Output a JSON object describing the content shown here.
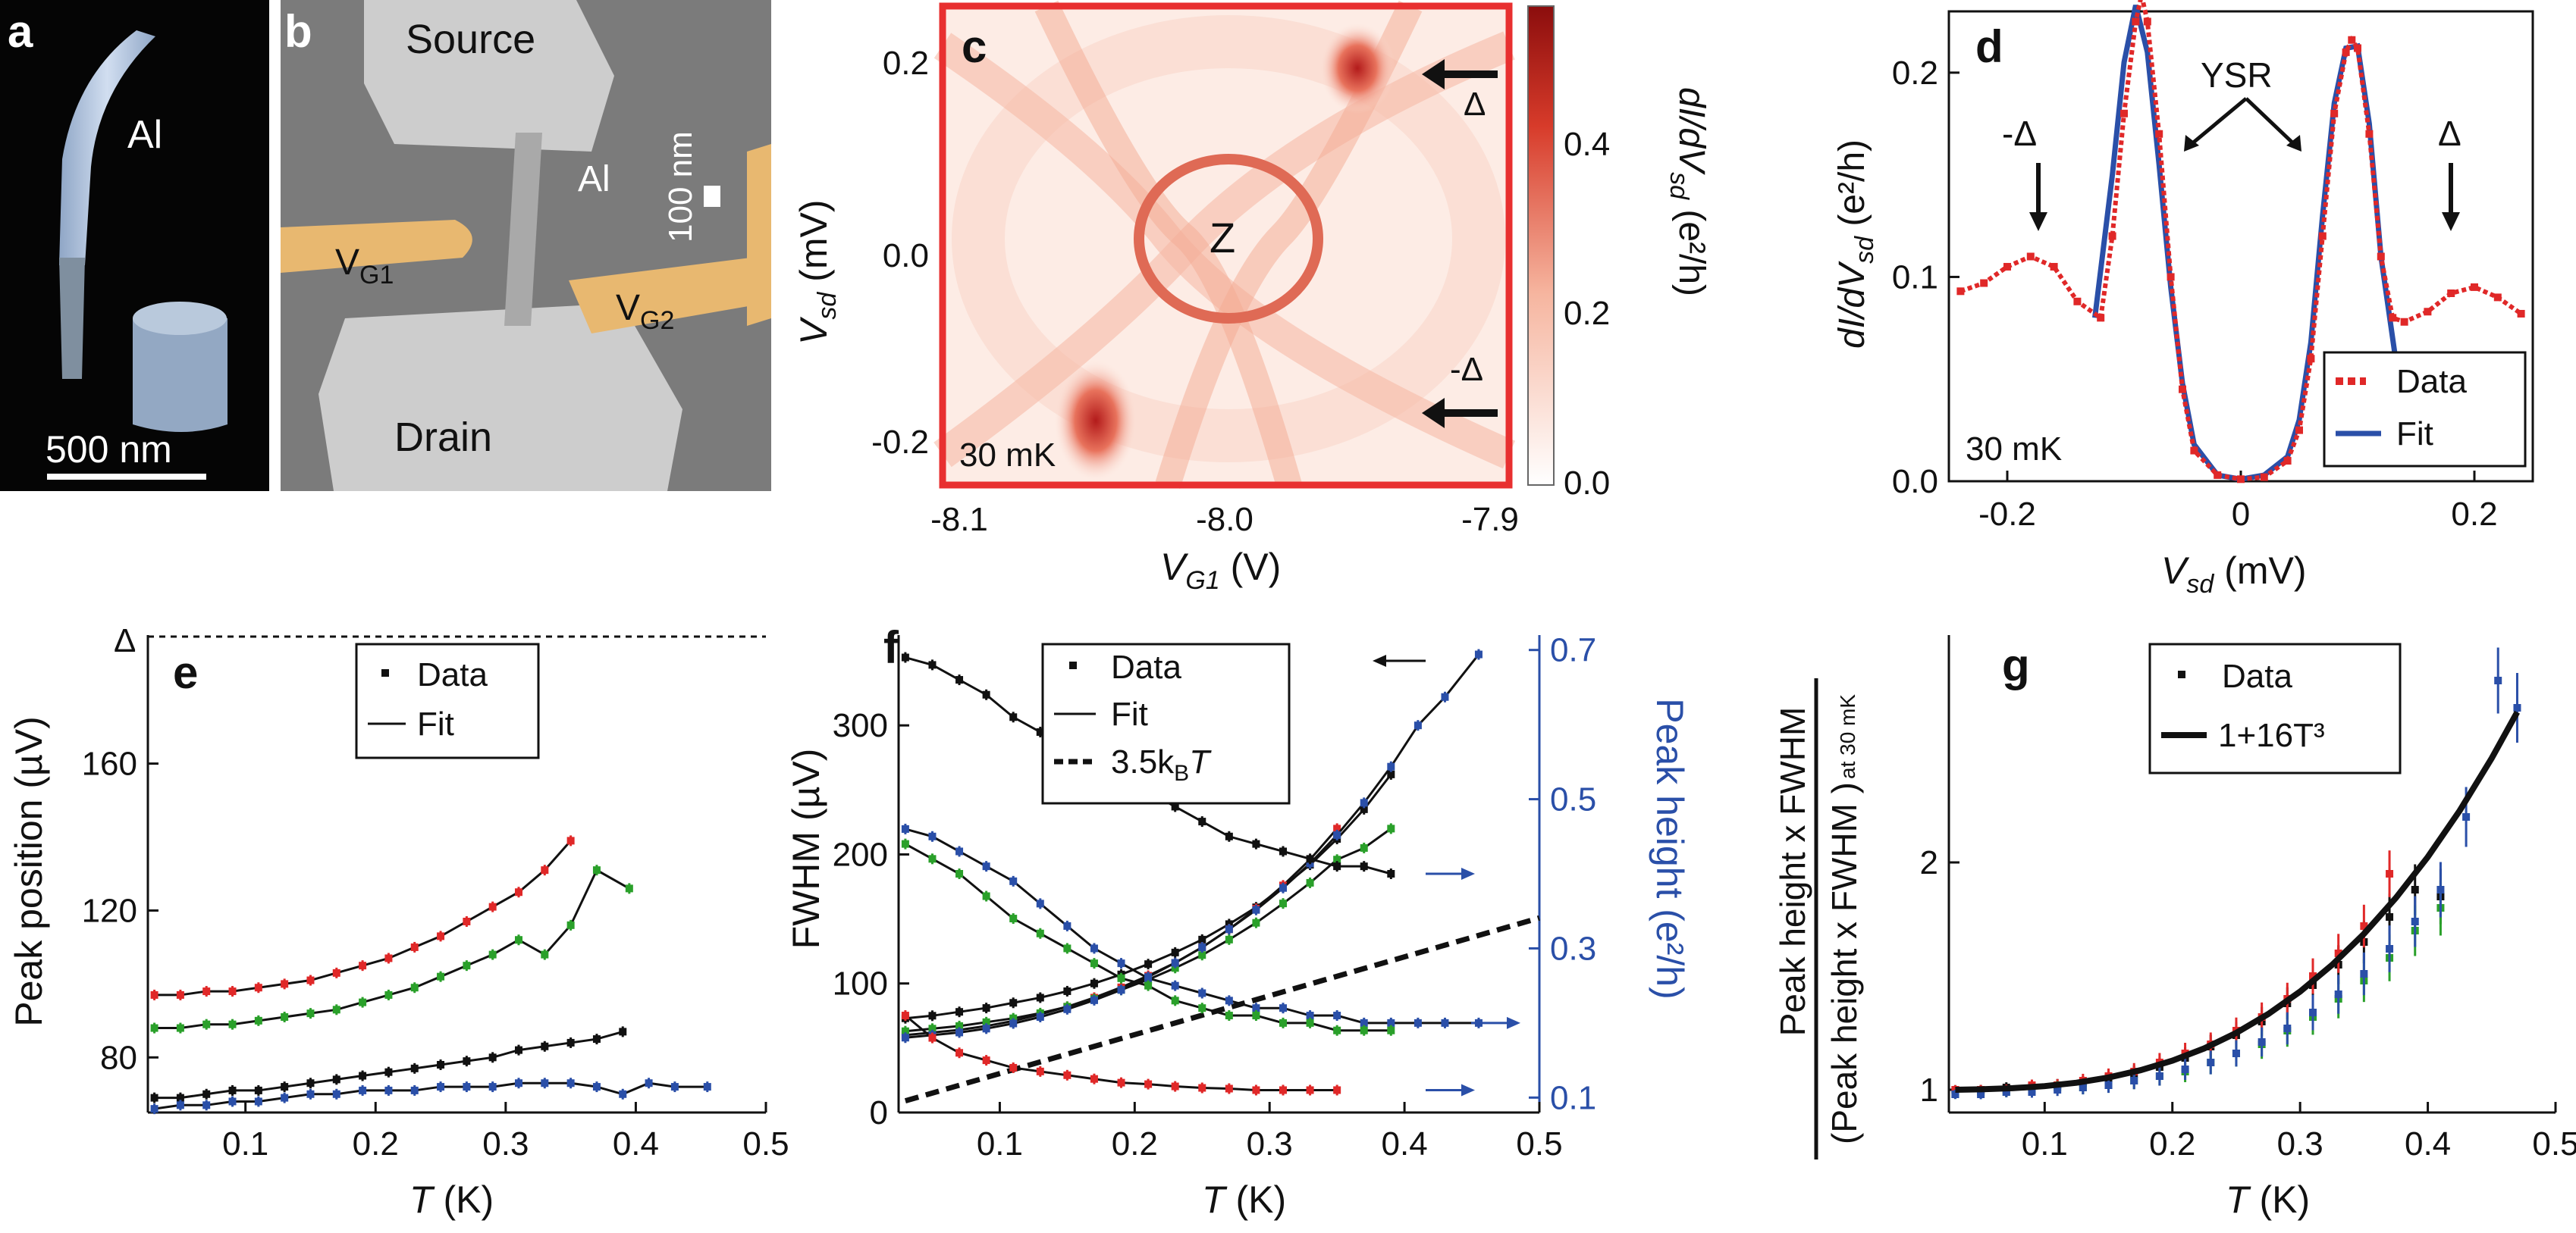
{
  "panels": {
    "a": {
      "letter": "a",
      "label_al": "Al",
      "scale_bar": "500 nm"
    },
    "b": {
      "letter": "b",
      "source": "Source",
      "drain": "Drain",
      "al": "Al",
      "vg1_main": "V",
      "vg1_sub": "G1",
      "vg2_main": "V",
      "vg2_sub": "G2",
      "scale": "100 nm"
    },
    "c": {
      "letter": "c",
      "temp": "30 mK",
      "z_label": "Z",
      "delta_up": "Δ",
      "delta_down": "-Δ",
      "xlabel_main": "V",
      "xlabel_sub": "G1",
      "xlabel_unit": " (V)",
      "ylabel_main": "V",
      "ylabel_sub": "sd",
      "ylabel_unit": " (mV)",
      "cbar_label": "dI/dV",
      "cbar_sub": "sd",
      "cbar_unit": " (e²/h)",
      "xticks": [
        "-8.1",
        "-8.0",
        "-7.9"
      ],
      "yticks": [
        "0.2",
        "0.0",
        "-0.2"
      ],
      "cticks": [
        "0.0",
        "0.2",
        "0.4"
      ]
    },
    "d": {
      "letter": "d",
      "temp": "30 mK",
      "ysr": "YSR",
      "minus_delta": "-Δ",
      "delta": "Δ"
    },
    "e": {
      "letter": "e",
      "delta_label": "Δ"
    },
    "f": {
      "letter": "f",
      "legend3": "3.5k",
      "legend3_sub": "B",
      "legend3_T": "T"
    },
    "g": {
      "letter": "g",
      "legend2": "1+16T³",
      "ylabel_top": "Peak height x FWHM",
      "ylabel_bottom": "(Peak height x FWHM )",
      "ylabel_sub": "at 30 mK"
    }
  },
  "colors": {
    "red": "#e02828",
    "green": "#2aa02a",
    "blue": "#2a4fa8",
    "black": "#111111",
    "gold": "#e8b870",
    "frame_red": "#e83030"
  },
  "chart_data": [
    {
      "id": "d",
      "type": "line",
      "xlabel": "Vsd (mV)",
      "ylabel": "dI/dVsd (e²/h)",
      "xlim": [
        -0.25,
        0.25
      ],
      "ylim": [
        0,
        0.23
      ],
      "xticks": [
        "-0.2",
        "0",
        "0.2"
      ],
      "yticks": [
        "0.0",
        "0.1",
        "0.2"
      ],
      "legend": [
        "Data",
        "Fit"
      ],
      "series": [
        {
          "name": "Data",
          "x": [
            -0.24,
            -0.22,
            -0.2,
            -0.18,
            -0.16,
            -0.14,
            -0.12,
            -0.11,
            -0.1,
            -0.09,
            -0.085,
            -0.08,
            -0.07,
            -0.06,
            -0.05,
            -0.04,
            -0.02,
            0,
            0.02,
            0.04,
            0.05,
            0.06,
            0.07,
            0.08,
            0.09,
            0.095,
            0.1,
            0.11,
            0.12,
            0.13,
            0.14,
            0.16,
            0.18,
            0.2,
            0.22,
            0.24
          ],
          "y": [
            0.093,
            0.097,
            0.105,
            0.11,
            0.105,
            0.088,
            0.08,
            0.12,
            0.18,
            0.225,
            0.238,
            0.225,
            0.17,
            0.1,
            0.045,
            0.015,
            0.003,
            0.001,
            0.002,
            0.01,
            0.025,
            0.06,
            0.12,
            0.18,
            0.21,
            0.216,
            0.212,
            0.17,
            0.11,
            0.08,
            0.078,
            0.083,
            0.092,
            0.095,
            0.09,
            0.082
          ]
        },
        {
          "name": "Fit",
          "x": [
            -0.125,
            -0.11,
            -0.1,
            -0.09,
            -0.08,
            -0.07,
            -0.06,
            -0.05,
            -0.04,
            -0.02,
            0,
            0.02,
            0.04,
            0.05,
            0.06,
            0.07,
            0.08,
            0.09,
            0.1,
            0.11,
            0.12,
            0.135
          ],
          "y": [
            0.08,
            0.15,
            0.205,
            0.233,
            0.21,
            0.155,
            0.095,
            0.048,
            0.018,
            0.003,
            0.001,
            0.003,
            0.012,
            0.03,
            0.068,
            0.13,
            0.185,
            0.212,
            0.213,
            0.175,
            0.11,
            0.05
          ]
        }
      ]
    },
    {
      "id": "e",
      "type": "scatter",
      "xlabel": "T (K)",
      "ylabel": "Peak position (µV)",
      "xlim": [
        0.025,
        0.5
      ],
      "ylim": [
        65,
        195
      ],
      "xticks": [
        "0.1",
        "0.2",
        "0.3",
        "0.4",
        "0.5"
      ],
      "yticks": [
        "80",
        "120",
        "160"
      ],
      "legend": [
        "Data",
        "Fit"
      ],
      "series": [
        {
          "name": "red",
          "x": [
            0.03,
            0.05,
            0.07,
            0.09,
            0.11,
            0.13,
            0.15,
            0.17,
            0.19,
            0.21,
            0.23,
            0.25,
            0.27,
            0.29,
            0.31,
            0.33,
            0.35
          ],
          "y": [
            97,
            97,
            98,
            98,
            99,
            100,
            101,
            103,
            105,
            107,
            110,
            113,
            117,
            121,
            125,
            131,
            139
          ]
        },
        {
          "name": "green",
          "x": [
            0.03,
            0.05,
            0.07,
            0.09,
            0.11,
            0.13,
            0.15,
            0.17,
            0.19,
            0.21,
            0.23,
            0.25,
            0.27,
            0.29,
            0.31,
            0.33,
            0.35,
            0.37,
            0.395
          ],
          "y": [
            88,
            88,
            89,
            89,
            90,
            91,
            92,
            93,
            95,
            97,
            99,
            102,
            105,
            108,
            112,
            108,
            116,
            131,
            126
          ]
        },
        {
          "name": "black",
          "x": [
            0.03,
            0.05,
            0.07,
            0.09,
            0.11,
            0.13,
            0.15,
            0.17,
            0.19,
            0.21,
            0.23,
            0.25,
            0.27,
            0.29,
            0.31,
            0.33,
            0.35,
            0.37,
            0.39
          ],
          "y": [
            69,
            69,
            70,
            71,
            71,
            72,
            73,
            74,
            75,
            76,
            77,
            78,
            79,
            80,
            82,
            83,
            84,
            85,
            87
          ]
        },
        {
          "name": "blue",
          "x": [
            0.03,
            0.05,
            0.07,
            0.09,
            0.11,
            0.13,
            0.15,
            0.17,
            0.19,
            0.21,
            0.23,
            0.25,
            0.27,
            0.29,
            0.31,
            0.33,
            0.35,
            0.37,
            0.39,
            0.41,
            0.43,
            0.455
          ],
          "y": [
            66,
            67,
            67,
            68,
            68,
            69,
            70,
            70,
            71,
            71,
            71,
            72,
            72,
            72,
            73,
            73,
            73,
            72,
            70,
            73,
            72,
            72
          ]
        }
      ]
    },
    {
      "id": "f",
      "type": "scatter",
      "xlabel": "T (K)",
      "ylabel": "FWHM (µV)",
      "y2label": "Peak height (e²/h)",
      "xlim": [
        0.025,
        0.5
      ],
      "ylim": [
        0,
        370
      ],
      "y2lim": [
        0.08,
        0.72
      ],
      "xticks": [
        "0.1",
        "0.2",
        "0.3",
        "0.4",
        "0.5"
      ],
      "yticks": [
        "0",
        "100",
        "200",
        "300"
      ],
      "y2ticks": [
        "0.1",
        "0.3",
        "0.5",
        "0.7"
      ],
      "legend": [
        "Data",
        "Fit",
        "3.5kBT"
      ],
      "series": [
        {
          "name": "black FWHM",
          "x": [
            0.03,
            0.05,
            0.07,
            0.09,
            0.11,
            0.13,
            0.15,
            0.17,
            0.19,
            0.21,
            0.23,
            0.25,
            0.27,
            0.29,
            0.31,
            0.33,
            0.35,
            0.37,
            0.39
          ],
          "y": [
            73,
            75,
            78,
            81,
            85,
            89,
            94,
            100,
            107,
            115,
            124,
            134,
            146,
            159,
            175,
            192,
            212,
            235,
            262
          ]
        },
        {
          "name": "red FWHM",
          "x": [
            0.03,
            0.05,
            0.07,
            0.09,
            0.11,
            0.13,
            0.15,
            0.17,
            0.19,
            0.21,
            0.23,
            0.25,
            0.27,
            0.29,
            0.31,
            0.33,
            0.35
          ],
          "y": [
            60,
            62,
            64,
            67,
            71,
            76,
            82,
            89,
            97,
            106,
            116,
            128,
            142,
            158,
            176,
            196,
            220
          ]
        },
        {
          "name": "green FWHM",
          "x": [
            0.03,
            0.05,
            0.07,
            0.09,
            0.11,
            0.13,
            0.15,
            0.17,
            0.19,
            0.21,
            0.23,
            0.25,
            0.27,
            0.29,
            0.31,
            0.33,
            0.35,
            0.37,
            0.39
          ],
          "y": [
            63,
            65,
            67,
            70,
            73,
            77,
            82,
            88,
            95,
            103,
            112,
            122,
            134,
            147,
            162,
            178,
            196,
            205,
            220
          ]
        },
        {
          "name": "blue FWHM",
          "x": [
            0.03,
            0.05,
            0.07,
            0.09,
            0.11,
            0.13,
            0.15,
            0.17,
            0.19,
            0.21,
            0.23,
            0.25,
            0.27,
            0.29,
            0.31,
            0.33,
            0.35,
            0.37,
            0.39,
            0.41,
            0.43,
            0.455
          ],
          "y": [
            58,
            60,
            62,
            65,
            69,
            74,
            80,
            87,
            95,
            105,
            116,
            128,
            142,
            157,
            174,
            193,
            215,
            240,
            268,
            300,
            322,
            355
          ]
        },
        {
          "name": "black height",
          "x": [
            0.03,
            0.05,
            0.07,
            0.09,
            0.11,
            0.13,
            0.15,
            0.17,
            0.19,
            0.21,
            0.23,
            0.25,
            0.27,
            0.29,
            0.31,
            0.33,
            0.35,
            0.37,
            0.39
          ],
          "y2": [
            0.69,
            0.68,
            0.66,
            0.64,
            0.61,
            0.59,
            0.57,
            0.55,
            0.53,
            0.51,
            0.49,
            0.47,
            0.45,
            0.44,
            0.43,
            0.42,
            0.41,
            0.41,
            0.4
          ]
        },
        {
          "name": "blue height",
          "x": [
            0.03,
            0.05,
            0.07,
            0.09,
            0.11,
            0.13,
            0.15,
            0.17,
            0.19,
            0.21,
            0.23,
            0.25,
            0.27,
            0.29,
            0.31,
            0.33,
            0.35,
            0.37,
            0.39,
            0.41,
            0.43,
            0.455
          ],
          "y2": [
            0.46,
            0.45,
            0.43,
            0.41,
            0.39,
            0.36,
            0.33,
            0.3,
            0.28,
            0.26,
            0.25,
            0.24,
            0.23,
            0.22,
            0.22,
            0.21,
            0.21,
            0.2,
            0.2,
            0.2,
            0.2,
            0.2
          ]
        },
        {
          "name": "green height",
          "x": [
            0.03,
            0.05,
            0.07,
            0.09,
            0.11,
            0.13,
            0.15,
            0.17,
            0.19,
            0.21,
            0.23,
            0.25,
            0.27,
            0.29,
            0.31,
            0.33,
            0.35,
            0.37,
            0.39
          ],
          "y2": [
            0.44,
            0.42,
            0.4,
            0.37,
            0.34,
            0.32,
            0.3,
            0.28,
            0.26,
            0.25,
            0.23,
            0.22,
            0.21,
            0.21,
            0.2,
            0.2,
            0.19,
            0.19,
            0.19
          ]
        },
        {
          "name": "red height",
          "x": [
            0.03,
            0.05,
            0.07,
            0.09,
            0.11,
            0.13,
            0.15,
            0.17,
            0.19,
            0.21,
            0.23,
            0.25,
            0.27,
            0.29,
            0.31,
            0.33,
            0.35
          ],
          "y2": [
            0.21,
            0.18,
            0.16,
            0.15,
            0.14,
            0.135,
            0.13,
            0.125,
            0.12,
            0.118,
            0.115,
            0.113,
            0.112,
            0.11,
            0.11,
            0.11,
            0.11
          ]
        }
      ]
    },
    {
      "id": "g",
      "type": "scatter",
      "xlabel": "T (K)",
      "xlim": [
        0.025,
        0.5
      ],
      "ylim": [
        0.9,
        3.0
      ],
      "xticks": [
        "0.1",
        "0.2",
        "0.3",
        "0.4",
        "0.5"
      ],
      "yticks": [
        "1",
        "2"
      ],
      "legend": [
        "Data",
        "1+16T³"
      ],
      "series": [
        {
          "name": "black",
          "x": [
            0.03,
            0.05,
            0.07,
            0.09,
            0.11,
            0.13,
            0.15,
            0.17,
            0.19,
            0.21,
            0.23,
            0.25,
            0.27,
            0.29,
            0.31,
            0.33,
            0.35,
            0.37,
            0.39,
            0.41
          ],
          "y": [
            1.0,
            1.0,
            1.01,
            1.01,
            1.02,
            1.03,
            1.05,
            1.07,
            1.1,
            1.14,
            1.19,
            1.24,
            1.3,
            1.38,
            1.46,
            1.55,
            1.65,
            1.76,
            1.88,
            1.85
          ]
        },
        {
          "name": "red",
          "x": [
            0.03,
            0.05,
            0.07,
            0.09,
            0.11,
            0.13,
            0.15,
            0.17,
            0.19,
            0.21,
            0.23,
            0.25,
            0.27,
            0.29,
            0.31,
            0.33,
            0.35,
            0.37
          ],
          "y": [
            1.0,
            1.0,
            1.0,
            1.02,
            1.02,
            1.04,
            1.06,
            1.08,
            1.12,
            1.16,
            1.2,
            1.26,
            1.32,
            1.4,
            1.5,
            1.6,
            1.72,
            1.95
          ]
        },
        {
          "name": "green",
          "x": [
            0.03,
            0.05,
            0.07,
            0.09,
            0.11,
            0.13,
            0.15,
            0.17,
            0.19,
            0.21,
            0.23,
            0.25,
            0.27,
            0.29,
            0.31,
            0.33,
            0.35,
            0.37,
            0.39,
            0.41
          ],
          "y": [
            0.98,
            0.99,
            0.99,
            1.0,
            1.01,
            1.01,
            1.02,
            1.04,
            1.06,
            1.08,
            1.12,
            1.16,
            1.2,
            1.26,
            1.32,
            1.4,
            1.48,
            1.58,
            1.7,
            1.8
          ]
        },
        {
          "name": "blue",
          "x": [
            0.03,
            0.05,
            0.07,
            0.09,
            0.11,
            0.13,
            0.15,
            0.17,
            0.19,
            0.21,
            0.23,
            0.25,
            0.27,
            0.29,
            0.31,
            0.33,
            0.35,
            0.37,
            0.39,
            0.41,
            0.43,
            0.455,
            0.47
          ],
          "y": [
            0.98,
            0.98,
            0.99,
            0.99,
            1.0,
            1.01,
            1.02,
            1.04,
            1.06,
            1.09,
            1.12,
            1.16,
            1.21,
            1.27,
            1.34,
            1.42,
            1.51,
            1.62,
            1.74,
            1.88,
            2.2,
            2.8,
            2.68
          ]
        },
        {
          "name": "fit",
          "x": [
            0.03,
            0.05,
            0.075,
            0.1,
            0.125,
            0.15,
            0.175,
            0.2,
            0.225,
            0.25,
            0.275,
            0.3,
            0.325,
            0.35,
            0.375,
            0.4,
            0.425,
            0.45,
            0.47
          ],
          "y": [
            1.0,
            1.002,
            1.007,
            1.016,
            1.031,
            1.054,
            1.086,
            1.128,
            1.182,
            1.25,
            1.333,
            1.432,
            1.549,
            1.686,
            1.844,
            2.024,
            2.228,
            2.458,
            2.661
          ]
        }
      ]
    }
  ]
}
